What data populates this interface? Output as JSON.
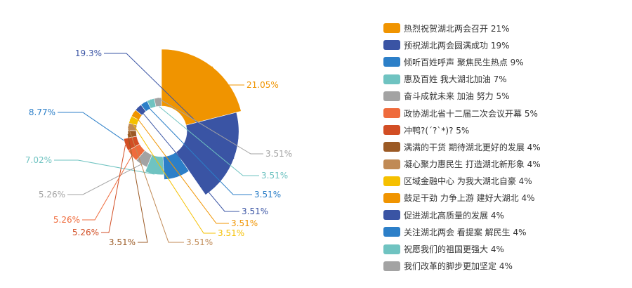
{
  "chart_data": {
    "type": "pie",
    "variant": "rose",
    "title": "",
    "legend_position": "right",
    "series": [
      {
        "name": "热烈祝贺湖北两会召开",
        "legend": "热烈祝贺湖北两会召开 21%",
        "value": 21.05,
        "label": "21.05%",
        "color": "#f09400"
      },
      {
        "name": "预祝湖北两会圆满成功",
        "legend": "预祝湖北两会圆满成功 19%",
        "value": 19.3,
        "label": "19.3%",
        "color": "#3a54a4"
      },
      {
        "name": "倾听百姓呼声 聚焦民生热点",
        "legend": "倾听百姓呼声 聚焦民生热点 9%",
        "value": 8.77,
        "label": "8.77%",
        "color": "#2c7fc8"
      },
      {
        "name": "惠及百姓 我大湖北加油",
        "legend": "惠及百姓 我大湖北加油 7%",
        "value": 7.02,
        "label": "7.02%",
        "color": "#6fc3c1"
      },
      {
        "name": "奋斗成就未来 加油 努力",
        "legend": "奋斗成就未来 加油 努力 5%",
        "value": 5.26,
        "label": "5.26%",
        "color": "#a3a3a3"
      },
      {
        "name": "政协湖北省十二届二次会议开幕",
        "legend": "政协湖北省十二届二次会议开幕 5%",
        "value": 5.26,
        "label": "5.26%",
        "color": "#ef6b3c"
      },
      {
        "name": "冲鸭?(´?`*)?",
        "legend": "冲鸭?(´?`*)? 5%",
        "value": 5.26,
        "label": "5.26%",
        "color": "#d24e24"
      },
      {
        "name": "满满的干货 期待湖北更好的发展",
        "legend": "满满的干货 期待湖北更好的发展 4%",
        "value": 3.51,
        "label": "3.51%",
        "color": "#9b5a25"
      },
      {
        "name": "凝心聚力惠民生 打造湖北新形象",
        "legend": "凝心聚力惠民生 打造湖北新形象 4%",
        "value": 3.51,
        "label": "3.51%",
        "color": "#c08a55"
      },
      {
        "name": "区域金融中心 为我大湖北自豪",
        "legend": "区域金融中心 为我大湖北自豪 4%",
        "value": 3.51,
        "label": "3.51%",
        "color": "#f5c000"
      },
      {
        "name": "鼓足干劲 力争上游 建好大湖北",
        "legend": "鼓足干劲 力争上游 建好大湖北 4%",
        "value": 3.51,
        "label": "3.51%",
        "color": "#f09400"
      },
      {
        "name": "促进湖北高质量的发展",
        "legend": "促进湖北高质量的发展 4%",
        "value": 3.51,
        "label": "3.51%",
        "color": "#3a54a4"
      },
      {
        "name": "关注湖北两会 看提案 解民生",
        "legend": "关注湖北两会 看提案 解民生 4%",
        "value": 3.51,
        "label": "3.51%",
        "color": "#2c7fc8"
      },
      {
        "name": "祝愿我们的祖国更强大",
        "legend": "祝愿我们的祖国更强大 4%",
        "value": 3.51,
        "label": "3.51%",
        "color": "#6fc3c1"
      },
      {
        "name": "我们改革的脚步更加坚定",
        "legend": "我们改革的脚步更加坚定 4%",
        "value": 3.51,
        "label": "3.51%",
        "color": "#a3a3a3"
      }
    ]
  }
}
